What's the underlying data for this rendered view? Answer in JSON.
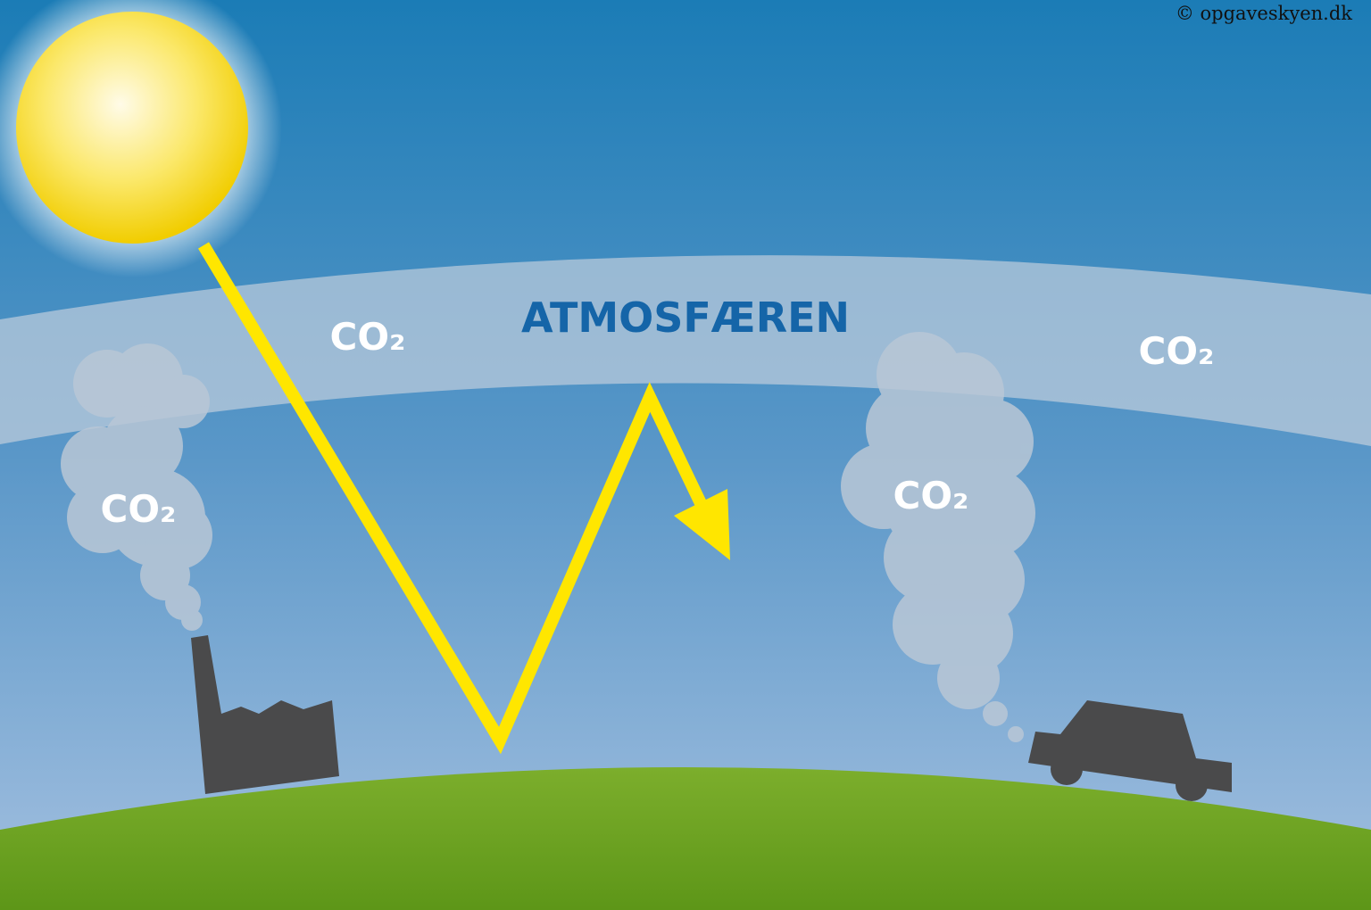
{
  "credit": "© opgaveskyen.dk",
  "atmosphere_label": "ATMOSFÆREN",
  "co2_labels": [
    "CO₂",
    "CO₂",
    "CO₂",
    "CO₂"
  ]
}
